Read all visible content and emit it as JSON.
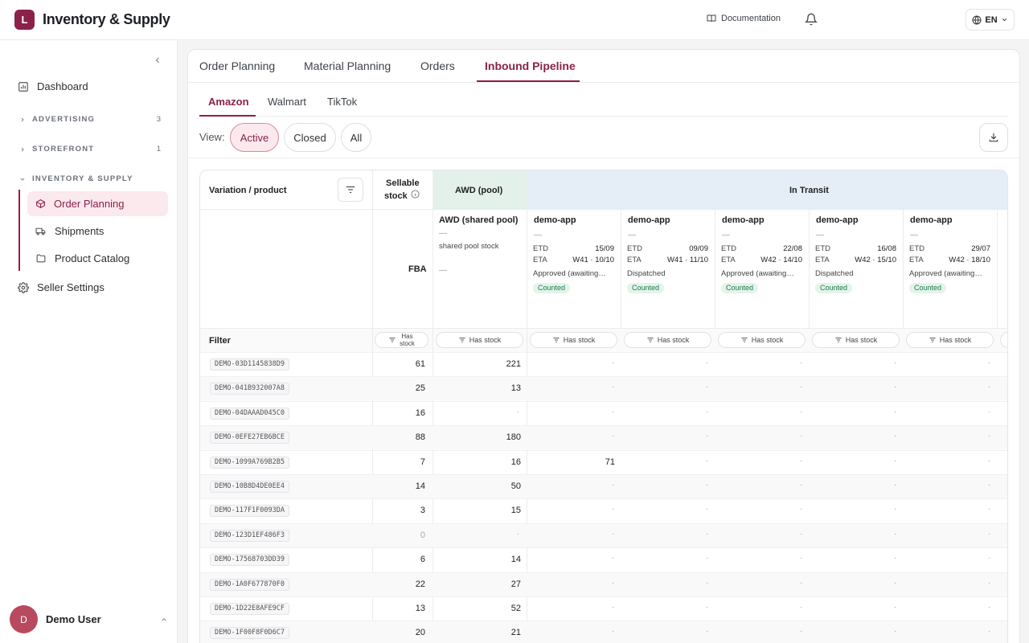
{
  "app": {
    "logo_letter": "L",
    "title": "Inventory & Supply",
    "docs_label": "Documentation",
    "lang": "EN"
  },
  "sidebar": {
    "dashboard": "Dashboard",
    "advertising": {
      "label": "ADVERTISING",
      "count": "3"
    },
    "storefront": {
      "label": "STOREFRONT",
      "count": "1"
    },
    "inventory": {
      "label": "INVENTORY & SUPPLY"
    },
    "sub_items": [
      "Order Planning",
      "Shipments",
      "Product Catalog"
    ],
    "seller_settings": "Seller Settings",
    "user": {
      "initial": "D",
      "name": "Demo User"
    }
  },
  "tabs": [
    "Order Planning",
    "Material Planning",
    "Orders",
    "Inbound Pipeline"
  ],
  "subtabs": [
    "Amazon",
    "Walmart",
    "TikTok"
  ],
  "view": {
    "label": "View:",
    "options": [
      "Active",
      "Closed",
      "All"
    ],
    "selected": "Active"
  },
  "table": {
    "headers": {
      "product": "Variation / product",
      "sellable_line1": "Sellable",
      "sellable_line2": "stock",
      "awd": "AWD (pool)",
      "in_transit": "In Transit",
      "fba": "FBA",
      "filter": "Filter"
    },
    "awd_card": {
      "name": "AWD (shared pool)",
      "dash": "—",
      "desc": "shared pool stock",
      "dash2": "—"
    },
    "filter_labels": {
      "narrow_line1": "Has",
      "narrow_line2": "stock",
      "wide": "Has stock"
    },
    "shipments": [
      {
        "name": "demo-app",
        "dash": "—",
        "etd_label": "ETD",
        "etd": "15/09",
        "eta_label": "ETA",
        "eta": "W41 · 10/10",
        "status": "Approved (awaiting…",
        "badge": "Counted"
      },
      {
        "name": "demo-app",
        "dash": "—",
        "etd_label": "ETD",
        "etd": "09/09",
        "eta_label": "ETA",
        "eta": "W41 · 11/10",
        "status": "Dispatched",
        "badge": "Counted"
      },
      {
        "name": "demo-app",
        "dash": "—",
        "etd_label": "ETD",
        "etd": "22/08",
        "eta_label": "ETA",
        "eta": "W42 · 14/10",
        "status": "Approved (awaiting…",
        "badge": "Counted"
      },
      {
        "name": "demo-app",
        "dash": "—",
        "etd_label": "ETD",
        "etd": "16/08",
        "eta_label": "ETA",
        "eta": "W42 · 15/10",
        "status": "Dispatched",
        "badge": "Counted"
      },
      {
        "name": "demo-app",
        "dash": "—",
        "etd_label": "ETD",
        "etd": "29/07",
        "eta_label": "ETA",
        "eta": "W42 · 18/10",
        "status": "Approved (awaiting…",
        "badge": "Counted"
      }
    ],
    "empty_mark": "·",
    "rows": [
      {
        "sku": "DEMO-03D1145838D9",
        "sellable": "61",
        "awd": "221",
        "t1": ""
      },
      {
        "sku": "DEMO-041B932007A8",
        "sellable": "25",
        "awd": "13",
        "t1": ""
      },
      {
        "sku": "DEMO-04DAAAD045C0",
        "sellable": "16",
        "awd": "",
        "t1": ""
      },
      {
        "sku": "DEMO-0EFE27EB6BCE",
        "sellable": "88",
        "awd": "180",
        "t1": ""
      },
      {
        "sku": "DEMO-1099A769B2B5",
        "sellable": "7",
        "awd": "16",
        "t1": "71"
      },
      {
        "sku": "DEMO-10B8D4DE0EE4",
        "sellable": "14",
        "awd": "50",
        "t1": ""
      },
      {
        "sku": "DEMO-117F1F0093DA",
        "sellable": "3",
        "awd": "15",
        "t1": ""
      },
      {
        "sku": "DEMO-123D1EF486F3",
        "sellable": "0",
        "awd": "",
        "t1": ""
      },
      {
        "sku": "DEMO-17568703DD39",
        "sellable": "6",
        "awd": "14",
        "t1": ""
      },
      {
        "sku": "DEMO-1A0F677870F0",
        "sellable": "22",
        "awd": "27",
        "t1": ""
      },
      {
        "sku": "DEMO-1D22E8AFE9CF",
        "sellable": "13",
        "awd": "52",
        "t1": ""
      },
      {
        "sku": "DEMO-1F00F8F0D6C7",
        "sellable": "20",
        "awd": "21",
        "t1": ""
      }
    ]
  },
  "colors": {
    "brand": "#8b2148",
    "awd_header": "#e4f0ea",
    "transit_header": "#e5eef7",
    "counted_bg": "#e3f4ea"
  }
}
